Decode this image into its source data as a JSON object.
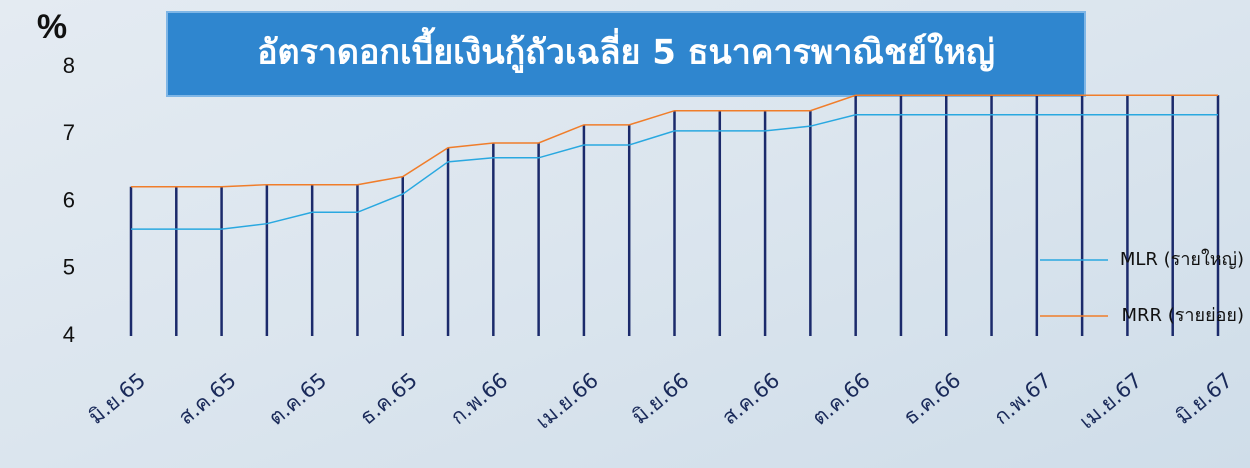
{
  "chart_data": {
    "type": "line",
    "title": "อัตราดอกเบี้ยเงินกู้ถัวเฉลี่ย 5 ธนาคารพาณิชย์ใหญ่",
    "y_label": "%",
    "categories": [
      "มิ.ย.65",
      null,
      "ส.ค.65",
      null,
      "ต.ค.65",
      null,
      "ธ.ค.65",
      null,
      "ก.พ.66",
      null,
      "เม.ย.66",
      null,
      "มิ.ย.66",
      null,
      "ส.ค.66",
      null,
      "ต.ค.66",
      null,
      "ธ.ค.66",
      null,
      "ก.พ.67",
      null,
      "เม.ย.67",
      null,
      "มิ.ย.67"
    ],
    "series": [
      {
        "name": "MLR (รายใหญ่)",
        "color": "#29a8e0",
        "values": [
          5.59,
          5.59,
          5.59,
          5.67,
          5.84,
          5.84,
          6.11,
          6.59,
          6.65,
          6.65,
          6.84,
          6.84,
          7.05,
          7.05,
          7.05,
          7.12,
          7.29,
          7.29,
          7.29,
          7.29,
          7.29,
          7.29,
          7.29,
          7.29,
          7.29
        ]
      },
      {
        "name": "MRR (รายย่อย)",
        "color": "#f07d2a",
        "values": [
          6.22,
          6.22,
          6.22,
          6.25,
          6.25,
          6.25,
          6.37,
          6.8,
          6.87,
          6.87,
          7.14,
          7.14,
          7.35,
          7.35,
          7.35,
          7.35,
          7.58,
          7.58,
          7.58,
          7.58,
          7.58,
          7.58,
          7.58,
          7.58,
          7.58
        ]
      }
    ],
    "drop_line_color": "#1b2a6b",
    "ylim": [
      4,
      8
    ],
    "yticks": [
      4,
      5,
      6,
      7,
      8
    ],
    "grid": false,
    "legend": "right"
  }
}
